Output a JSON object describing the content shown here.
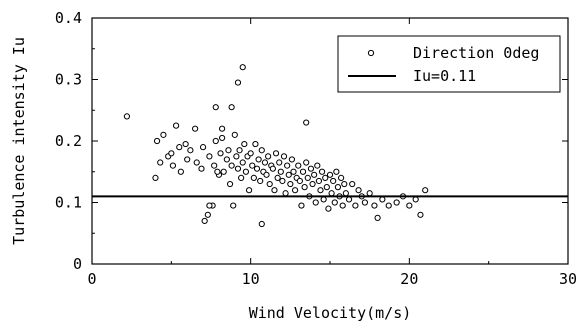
{
  "chart_data": {
    "type": "scatter",
    "xlabel": "Wind Velocity(m/s)",
    "ylabel": "Turbulence intensity Iu",
    "xlim": [
      0,
      30
    ],
    "ylim": [
      0,
      0.4
    ],
    "x_ticks": [
      "0",
      "10",
      "20",
      "30"
    ],
    "y_ticks": [
      "0",
      "0.1",
      "0.2",
      "0.3",
      "0.4"
    ],
    "grid": false,
    "legend_position": "top-right",
    "series": [
      {
        "name": "Direction 0deg",
        "marker": "open-circle",
        "color": "#000000",
        "x": [
          2.2,
          4.0,
          4.1,
          4.3,
          4.5,
          4.8,
          5.0,
          5.1,
          5.3,
          5.6,
          5.9,
          6.0,
          6.2,
          6.6,
          6.9,
          7.0,
          7.1,
          7.3,
          7.4,
          7.6,
          7.7,
          7.8,
          8.0,
          8.1,
          8.2,
          8.3,
          8.5,
          8.6,
          8.7,
          8.8,
          8.9,
          9.0,
          9.1,
          9.2,
          9.3,
          9.4,
          9.5,
          9.6,
          9.7,
          9.8,
          9.9,
          10.0,
          10.1,
          10.2,
          10.3,
          10.4,
          10.5,
          10.6,
          10.7,
          10.8,
          10.9,
          11.0,
          11.1,
          11.2,
          11.3,
          11.4,
          11.5,
          11.6,
          11.7,
          11.8,
          11.9,
          12.0,
          12.1,
          12.2,
          12.3,
          12.4,
          12.5,
          12.6,
          12.7,
          12.8,
          12.9,
          13.0,
          13.1,
          13.2,
          13.3,
          13.4,
          13.5,
          13.6,
          13.7,
          13.8,
          13.9,
          14.0,
          14.1,
          14.2,
          14.3,
          14.4,
          14.5,
          14.6,
          14.7,
          14.8,
          14.9,
          15.0,
          15.1,
          15.2,
          15.3,
          15.4,
          15.5,
          15.6,
          15.7,
          15.8,
          15.9,
          16.0,
          16.2,
          16.4,
          16.6,
          16.8,
          17.0,
          17.2,
          17.5,
          17.8,
          18.0,
          18.3,
          18.7,
          19.2,
          19.6,
          20.0,
          20.4,
          20.7,
          21.0,
          9.2,
          9.5,
          8.8,
          13.5,
          10.7,
          7.8,
          7.4,
          6.5,
          5.5,
          8.2,
          7.9
        ],
        "y": [
          0.24,
          0.14,
          0.2,
          0.165,
          0.21,
          0.175,
          0.18,
          0.16,
          0.225,
          0.15,
          0.195,
          0.17,
          0.185,
          0.165,
          0.155,
          0.19,
          0.07,
          0.08,
          0.175,
          0.095,
          0.16,
          0.2,
          0.145,
          0.18,
          0.22,
          0.15,
          0.17,
          0.185,
          0.13,
          0.16,
          0.095,
          0.21,
          0.175,
          0.155,
          0.185,
          0.14,
          0.165,
          0.195,
          0.15,
          0.175,
          0.12,
          0.18,
          0.16,
          0.14,
          0.195,
          0.155,
          0.17,
          0.135,
          0.185,
          0.15,
          0.165,
          0.145,
          0.175,
          0.13,
          0.16,
          0.155,
          0.12,
          0.18,
          0.14,
          0.165,
          0.15,
          0.135,
          0.175,
          0.115,
          0.16,
          0.145,
          0.13,
          0.17,
          0.15,
          0.12,
          0.14,
          0.16,
          0.135,
          0.095,
          0.15,
          0.125,
          0.165,
          0.14,
          0.11,
          0.155,
          0.13,
          0.145,
          0.1,
          0.16,
          0.135,
          0.12,
          0.15,
          0.105,
          0.14,
          0.125,
          0.09,
          0.145,
          0.115,
          0.135,
          0.1,
          0.15,
          0.125,
          0.11,
          0.14,
          0.095,
          0.13,
          0.115,
          0.105,
          0.13,
          0.095,
          0.12,
          0.11,
          0.1,
          0.115,
          0.095,
          0.075,
          0.105,
          0.095,
          0.1,
          0.11,
          0.095,
          0.105,
          0.08,
          0.12,
          0.295,
          0.32,
          0.255,
          0.23,
          0.065,
          0.255,
          0.095,
          0.22,
          0.19,
          0.205,
          0.15
        ]
      },
      {
        "name": "Iu=0.11",
        "type": "line",
        "color": "#000000",
        "x": [
          0,
          30
        ],
        "y": [
          0.11,
          0.11
        ]
      }
    ]
  }
}
